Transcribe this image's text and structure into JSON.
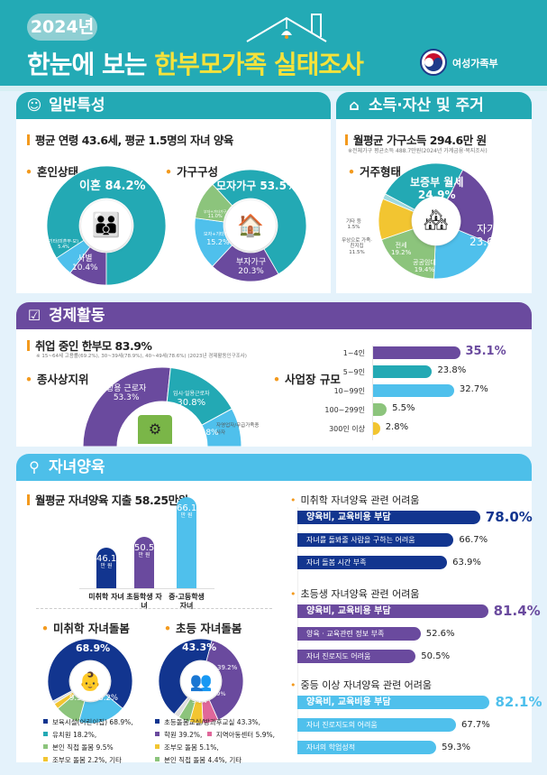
{
  "header": {
    "year": "2024년",
    "title_prefix": "한눈에 보는 ",
    "title_highlight": "한부모가족 실태조사",
    "ministry": "여성가족부"
  },
  "colors": {
    "teal": "#23a9b4",
    "purple": "#6a4a9e",
    "lightblue": "#4fc0ec",
    "green": "#8cc47c",
    "yellow": "#f2c531",
    "navy": "#12358f",
    "pink": "#e0679a",
    "orange": "#f39a1e",
    "header_yellow": "#f6e23a"
  },
  "general": {
    "title": "일반특성",
    "icon": "faces-icon",
    "headline": "평균 연령 43.6세, 평균 1.5명의 자녀 양육",
    "marital": {
      "label": "혼인상태",
      "segments": [
        {
          "name": "사별",
          "value": 10.4,
          "text": "10.4%",
          "color": "#6a4a9e"
        },
        {
          "name": "기타(미혼부·모)",
          "value": 5.4,
          "text": "5.4%",
          "color": "#4fc0ec"
        },
        {
          "name": "이혼",
          "value": 84.2,
          "text": "84.2%",
          "color": "#23a9b4"
        }
      ]
    },
    "household": {
      "label": "가구구성",
      "segments": [
        {
          "name": "부자가구",
          "value": 20.3,
          "text": "20.3%",
          "color": "#6a4a9e"
        },
        {
          "name": "모자+기타가구",
          "value": 15.2,
          "text": "15.2%",
          "color": "#4fc0ec"
        },
        {
          "name": "부자+기타가구",
          "value": 11.0,
          "text": "11.0%",
          "color": "#8cc47c"
        },
        {
          "name": "모자가구",
          "value": 53.5,
          "text": "53.5%",
          "color": "#23a9b4"
        }
      ]
    }
  },
  "income": {
    "title": "소득·자산 및 주거",
    "icon": "house-hands-icon",
    "headline": "월평균 가구소득 294.6만 원",
    "note": "※전체가구 평균소득 488.7만원(2024년 가계금융·복지조사)",
    "housing": {
      "label": "거주형태",
      "segments": [
        {
          "name": "보증부 월세",
          "value": 24.9,
          "text": "24.9%",
          "color": "#23a9b4"
        },
        {
          "name": "자가",
          "value": 23.6,
          "text": "23.6%",
          "color": "#6a4a9e"
        },
        {
          "name": "공공임대",
          "value": 19.4,
          "text": "19.4%",
          "color": "#4fc0ec"
        },
        {
          "name": "전세",
          "value": 19.2,
          "text": "19.2%",
          "color": "#8cc47c"
        },
        {
          "name": "무상으로 가족·친지집",
          "value": 11.5,
          "text": "11.5%",
          "color": "#f2c531"
        },
        {
          "name": "기타 등",
          "value": 1.5,
          "text": "1.5%",
          "color": "#9fd9de"
        }
      ]
    }
  },
  "economy": {
    "title": "경제활동",
    "icon": "worker-icon",
    "headline": "취업 중인 한부모 83.9%",
    "note": "※ 15~64세 고용률(69.2%), 30~39세(78.9%), 40~49세(78.6%) (2023년 경제활동인구조사)",
    "status": {
      "label": "종사상지위",
      "segments": [
        {
          "name": "상용 근로자",
          "value": 53.3,
          "text": "53.3%",
          "color": "#6a4a9e"
        },
        {
          "name": "임시·일용근로자",
          "value": 30.8,
          "text": "30.8%",
          "color": "#23a9b4"
        },
        {
          "name": "자영업자/무급가족종사자",
          "value": 15.8,
          "text": "15.8%",
          "color": "#4fc0ec"
        }
      ]
    },
    "size": {
      "label": "사업장 규모",
      "bars": [
        {
          "name": "1~4인",
          "value": 35.1,
          "text": "35.1%",
          "color": "#6a4a9e"
        },
        {
          "name": "5~9인",
          "value": 23.8,
          "text": "23.8%",
          "color": "#23a9b4"
        },
        {
          "name": "10~99인",
          "value": 32.7,
          "text": "32.7%",
          "color": "#4fc0ec"
        },
        {
          "name": "100~299인",
          "value": 5.5,
          "text": "5.5%",
          "color": "#8cc47c"
        },
        {
          "name": "300인 이상",
          "value": 2.8,
          "text": "2.8%",
          "color": "#f2c531"
        }
      ]
    }
  },
  "childcare": {
    "title": "자녀양육",
    "icon": "parent-child-icon",
    "headline": "월평균 자녀양육 지출 58.25만원",
    "spending": [
      {
        "name": "미취학 자녀",
        "value": 46.1,
        "text": "46.1",
        "unit": "만 원",
        "color": "#12358f"
      },
      {
        "name": "초등학생 자녀",
        "value": 50.5,
        "text": "50.5",
        "unit": "만 원",
        "color": "#6a4a9e"
      },
      {
        "name": "중·고등학생 자녀",
        "value": 66.1,
        "text": "66.1",
        "unit": "만 원",
        "color": "#4fc0ec"
      }
    ],
    "preschool_care": {
      "label": "미취학 자녀돌봄",
      "segments": [
        {
          "value": 68.9,
          "text": "68.9%",
          "color": "#12358f"
        },
        {
          "value": 18.2,
          "text": "18.2%",
          "color": "#4fc0ec"
        },
        {
          "value": 9.5,
          "text": "9.5%",
          "color": "#8cc47c"
        },
        {
          "value": 2.2,
          "text": "2.2%",
          "color": "#f2c531"
        },
        {
          "value": 1.2,
          "text": "",
          "color": "#dddddd"
        }
      ],
      "legend": [
        "보육시설(어린이집) 68.9%,",
        "유치원 18.2%,",
        "본인 직접 돌봄 9.5%",
        "조부모 돌봄 2.2%, 기타"
      ]
    },
    "elementary_care": {
      "label": "초등 자녀돌봄",
      "segments": [
        {
          "value": 39.2,
          "text": "39.2%",
          "color": "#6a4a9e"
        },
        {
          "value": 5.9,
          "text": "5.9%",
          "color": "#e0679a"
        },
        {
          "value": 5.1,
          "text": "5.1%",
          "color": "#f2c531"
        },
        {
          "value": 4.4,
          "text": "",
          "color": "#8cc47c"
        },
        {
          "value": 2.1,
          "text": "",
          "color": "#dddddd"
        },
        {
          "value": 43.3,
          "text": "43.3%",
          "color": "#12358f"
        }
      ],
      "legend": [
        "초등돌봄교실/방과후교실 43.3%,",
        "학원 39.2%,",
        "지역아동센터 5.9%,",
        "조부모 돌봄 5.1%,",
        "본인 직접 돌봄 4.4%, 기타"
      ]
    },
    "difficulties": [
      {
        "title": "미취학 자녀양육 관련 어려움",
        "color": "#12358f",
        "items": [
          {
            "label": "양육비, 교육비용 부담",
            "value": 78.0,
            "text": "78.0%"
          },
          {
            "label": "자녀를 돌봐줄 사람을 구하는 어려움",
            "value": 66.7,
            "text": "66.7%"
          },
          {
            "label": "자녀 돌봄 시간 부족",
            "value": 63.9,
            "text": "63.9%"
          }
        ]
      },
      {
        "title": "초등생 자녀양육 관련 어려움",
        "color": "#6a4a9e",
        "items": [
          {
            "label": "양육비, 교육비용 부담",
            "value": 81.4,
            "text": "81.4%"
          },
          {
            "label": "양육 · 교육관련 정보 부족",
            "value": 52.6,
            "text": "52.6%"
          },
          {
            "label": "자녀 진로지도 어려움",
            "value": 50.5,
            "text": "50.5%"
          }
        ]
      },
      {
        "title": "중등 이상 자녀양육 관련 어려움",
        "color": "#4fc0ec",
        "items": [
          {
            "label": "양육비, 교육비용 부담",
            "value": 82.1,
            "text": "82.1%"
          },
          {
            "label": "자녀 진로지도의 어려움",
            "value": 67.7,
            "text": "67.7%"
          },
          {
            "label": "자녀의 학업성적",
            "value": 59.3,
            "text": "59.3%"
          }
        ]
      }
    ]
  }
}
